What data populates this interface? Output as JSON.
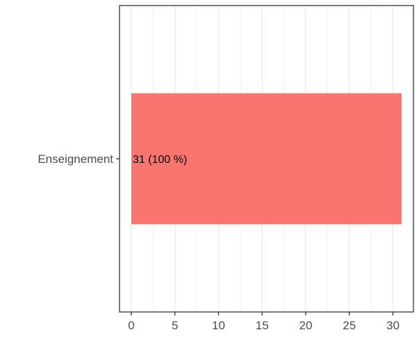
{
  "chart_data": {
    "type": "bar",
    "orientation": "horizontal",
    "categories": [
      "Enseignement"
    ],
    "values": [
      31
    ],
    "data_labels": [
      "31 (100 %)"
    ],
    "xlim": [
      0,
      31
    ],
    "xticks": [
      0,
      5,
      10,
      15,
      20,
      25,
      30
    ],
    "title": "",
    "xlabel": "",
    "ylabel": "",
    "grid": true,
    "bar_color": "#F8766D"
  }
}
